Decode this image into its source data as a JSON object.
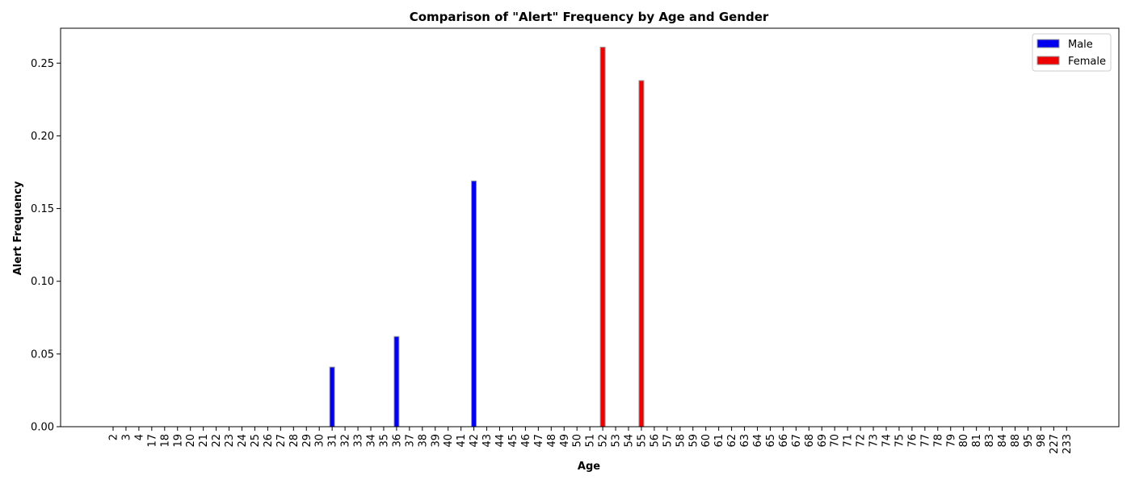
{
  "chart_data": {
    "type": "bar",
    "title": "Comparison of \"Alert\" Frequency by Age and Gender",
    "xlabel": "Age",
    "ylabel": "Alert Frequency",
    "categories": [
      "2",
      "3",
      "4",
      "17",
      "18",
      "19",
      "20",
      "21",
      "22",
      "23",
      "24",
      "25",
      "26",
      "27",
      "28",
      "29",
      "30",
      "31",
      "32",
      "33",
      "34",
      "35",
      "36",
      "37",
      "38",
      "39",
      "40",
      "41",
      "42",
      "43",
      "44",
      "45",
      "46",
      "47",
      "48",
      "49",
      "50",
      "51",
      "52",
      "53",
      "54",
      "55",
      "56",
      "57",
      "58",
      "59",
      "60",
      "61",
      "62",
      "63",
      "64",
      "65",
      "66",
      "67",
      "68",
      "69",
      "70",
      "71",
      "72",
      "73",
      "74",
      "75",
      "76",
      "77",
      "78",
      "79",
      "80",
      "81",
      "83",
      "84",
      "88",
      "95",
      "98",
      "227",
      "233"
    ],
    "series": [
      {
        "name": "Male",
        "color": "#0000ee",
        "values": [
          0,
          0,
          0,
          0,
          0,
          0,
          0,
          0,
          0,
          0,
          0,
          0,
          0,
          0,
          0,
          0,
          0,
          0.041,
          0,
          0,
          0,
          0,
          0.062,
          0,
          0,
          0,
          0,
          0,
          0.169,
          0,
          0,
          0,
          0,
          0,
          0,
          0,
          0,
          0,
          0,
          0,
          0,
          0,
          0,
          0,
          0,
          0,
          0,
          0,
          0,
          0,
          0,
          0,
          0,
          0,
          0,
          0,
          0,
          0,
          0,
          0,
          0,
          0,
          0,
          0,
          0,
          0,
          0,
          0,
          0,
          0,
          0,
          0,
          0,
          0,
          0
        ]
      },
      {
        "name": "Female",
        "color": "#ee0000",
        "values": [
          0,
          0,
          0,
          0,
          0,
          0,
          0,
          0,
          0,
          0,
          0,
          0,
          0,
          0,
          0,
          0,
          0,
          0,
          0,
          0,
          0,
          0,
          0,
          0,
          0,
          0,
          0,
          0,
          0,
          0,
          0,
          0,
          0,
          0,
          0,
          0,
          0,
          0,
          0.261,
          0,
          0,
          0.238,
          0,
          0,
          0,
          0,
          0,
          0,
          0,
          0,
          0,
          0,
          0,
          0,
          0,
          0,
          0,
          0,
          0,
          0,
          0,
          0,
          0,
          0,
          0,
          0,
          0,
          0,
          0,
          0,
          0,
          0,
          0,
          0,
          0
        ]
      }
    ],
    "yticks": [
      "0.00",
      "0.05",
      "0.10",
      "0.15",
      "0.20",
      "0.25"
    ],
    "ylim": [
      0,
      0.274
    ],
    "legend_position": "top-right",
    "grid": false
  }
}
